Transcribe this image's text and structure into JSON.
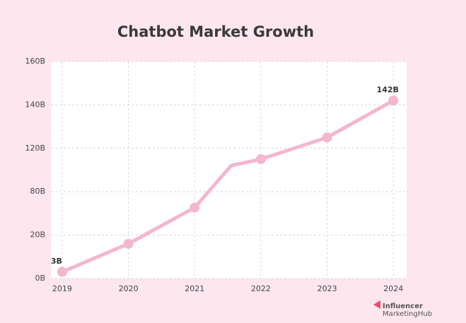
{
  "chart_data": {
    "type": "line",
    "title": "Chatbot Market Growth",
    "x": [
      2019,
      2020,
      2021,
      2021.55,
      2022,
      2023,
      2024
    ],
    "values": [
      3,
      16,
      58,
      104,
      110,
      125,
      142
    ],
    "value_labels": [
      "3B",
      null,
      null,
      null,
      null,
      null,
      "142B"
    ],
    "color": "#f4b6cc",
    "xlim": [
      2018.83,
      2024.2
    ],
    "xticks": [
      2019,
      2020,
      2021,
      2022,
      2023,
      2024
    ],
    "ylim": [
      0,
      160
    ],
    "yticks": [
      {
        "value": 0,
        "label": "0B"
      },
      {
        "value": 20,
        "label": "20B"
      },
      {
        "value": 80,
        "label": "80B"
      },
      {
        "value": 120,
        "label": "120B"
      },
      {
        "value": 140,
        "label": "140B"
      },
      {
        "value": 160,
        "label": "160B"
      }
    ],
    "grid": true
  },
  "logo": {
    "line1": "Influencer",
    "line2": "MarketingHub"
  }
}
